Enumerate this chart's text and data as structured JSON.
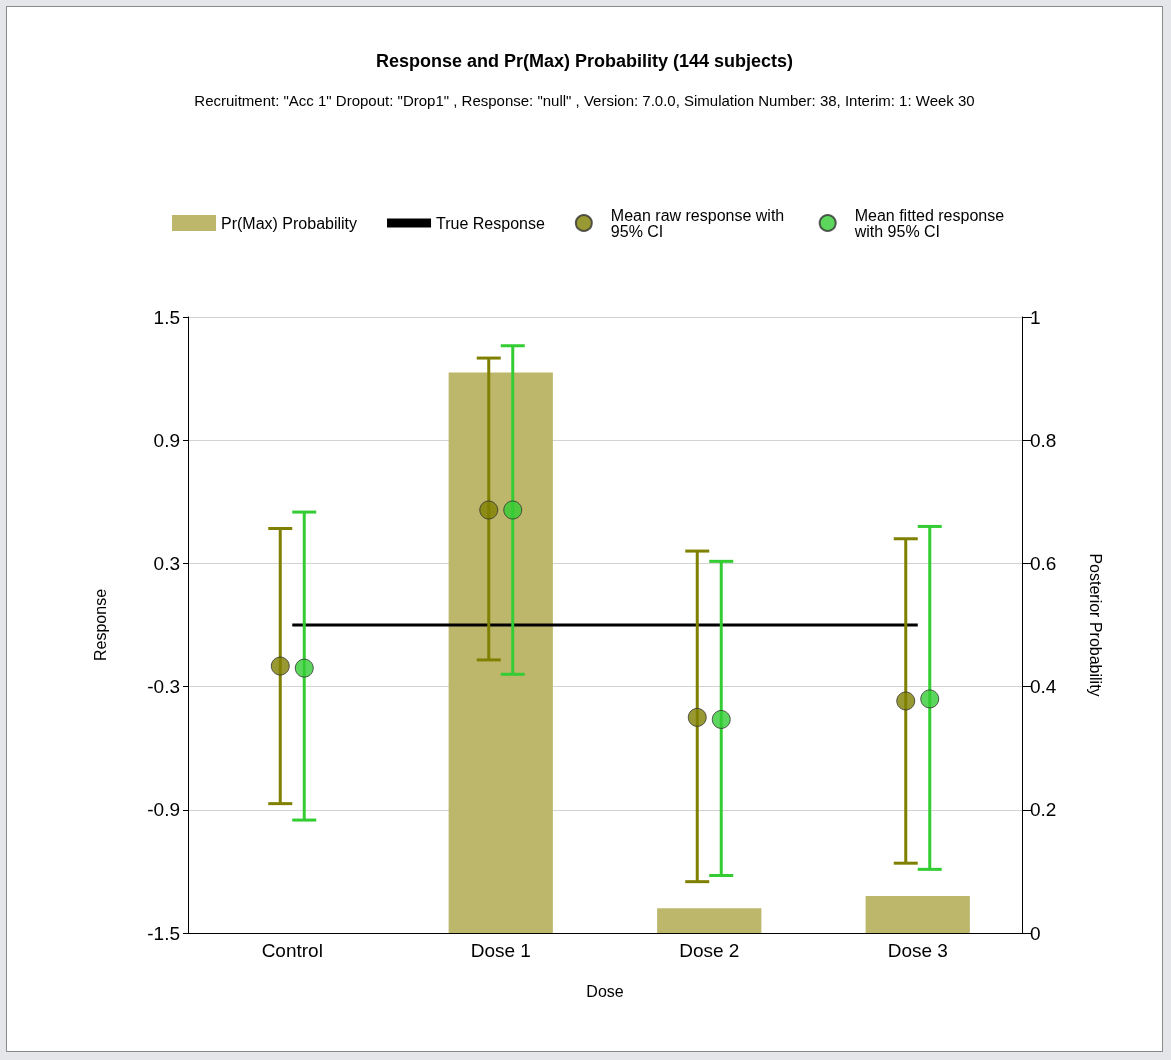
{
  "chart_data": {
    "type": "bar",
    "title": "Response and Pr(Max) Probability (144 subjects)",
    "subtitle": "Recruitment: \"Acc 1\" Dropout: \"Drop1\" , Response: \"null\" , Version: 7.0.0, Simulation Number: 38, Interim: 1: Week 30",
    "xlabel": "Dose",
    "ylabel": "Response",
    "y2label": "Posterior Probability",
    "categories": [
      "Control",
      "Dose 1",
      "Dose 2",
      "Dose 3"
    ],
    "ylim": [
      -1.5,
      1.5
    ],
    "yticks": [
      -1.5,
      -0.9,
      -0.3,
      0.3,
      0.9,
      1.5
    ],
    "y2lim": [
      0,
      1
    ],
    "y2ticks": [
      0,
      0.2,
      0.4,
      0.6,
      0.8,
      1
    ],
    "grid": "y",
    "legend": "top",
    "series": [
      {
        "name": "Pr(Max) Probability",
        "axis": "y2",
        "color": "#bdb76b",
        "values": [
          0,
          0.91,
          0.04,
          0.06
        ]
      },
      {
        "name": "True Response",
        "type": "line",
        "color": "#000000",
        "marker": "none",
        "values": [
          0,
          0,
          0,
          0
        ]
      },
      {
        "name": "Mean raw response with 95% CI",
        "type": "scatter",
        "color": "#808000",
        "marker": "circle",
        "values": [
          -0.2,
          0.56,
          -0.45,
          -0.37
        ],
        "errors": [
          [
            -0.87,
            0.47
          ],
          [
            -0.17,
            1.3
          ],
          [
            -1.25,
            0.36
          ],
          [
            -1.16,
            0.42
          ]
        ]
      },
      {
        "name": "Mean fitted response with 95% CI",
        "type": "scatter",
        "color": "#33cc33",
        "marker": "circle",
        "values": [
          -0.21,
          0.56,
          -0.46,
          -0.36
        ],
        "errors": [
          [
            -0.95,
            0.55
          ],
          [
            -0.24,
            1.36
          ],
          [
            -1.22,
            0.31
          ],
          [
            -1.19,
            0.48
          ]
        ]
      }
    ]
  }
}
